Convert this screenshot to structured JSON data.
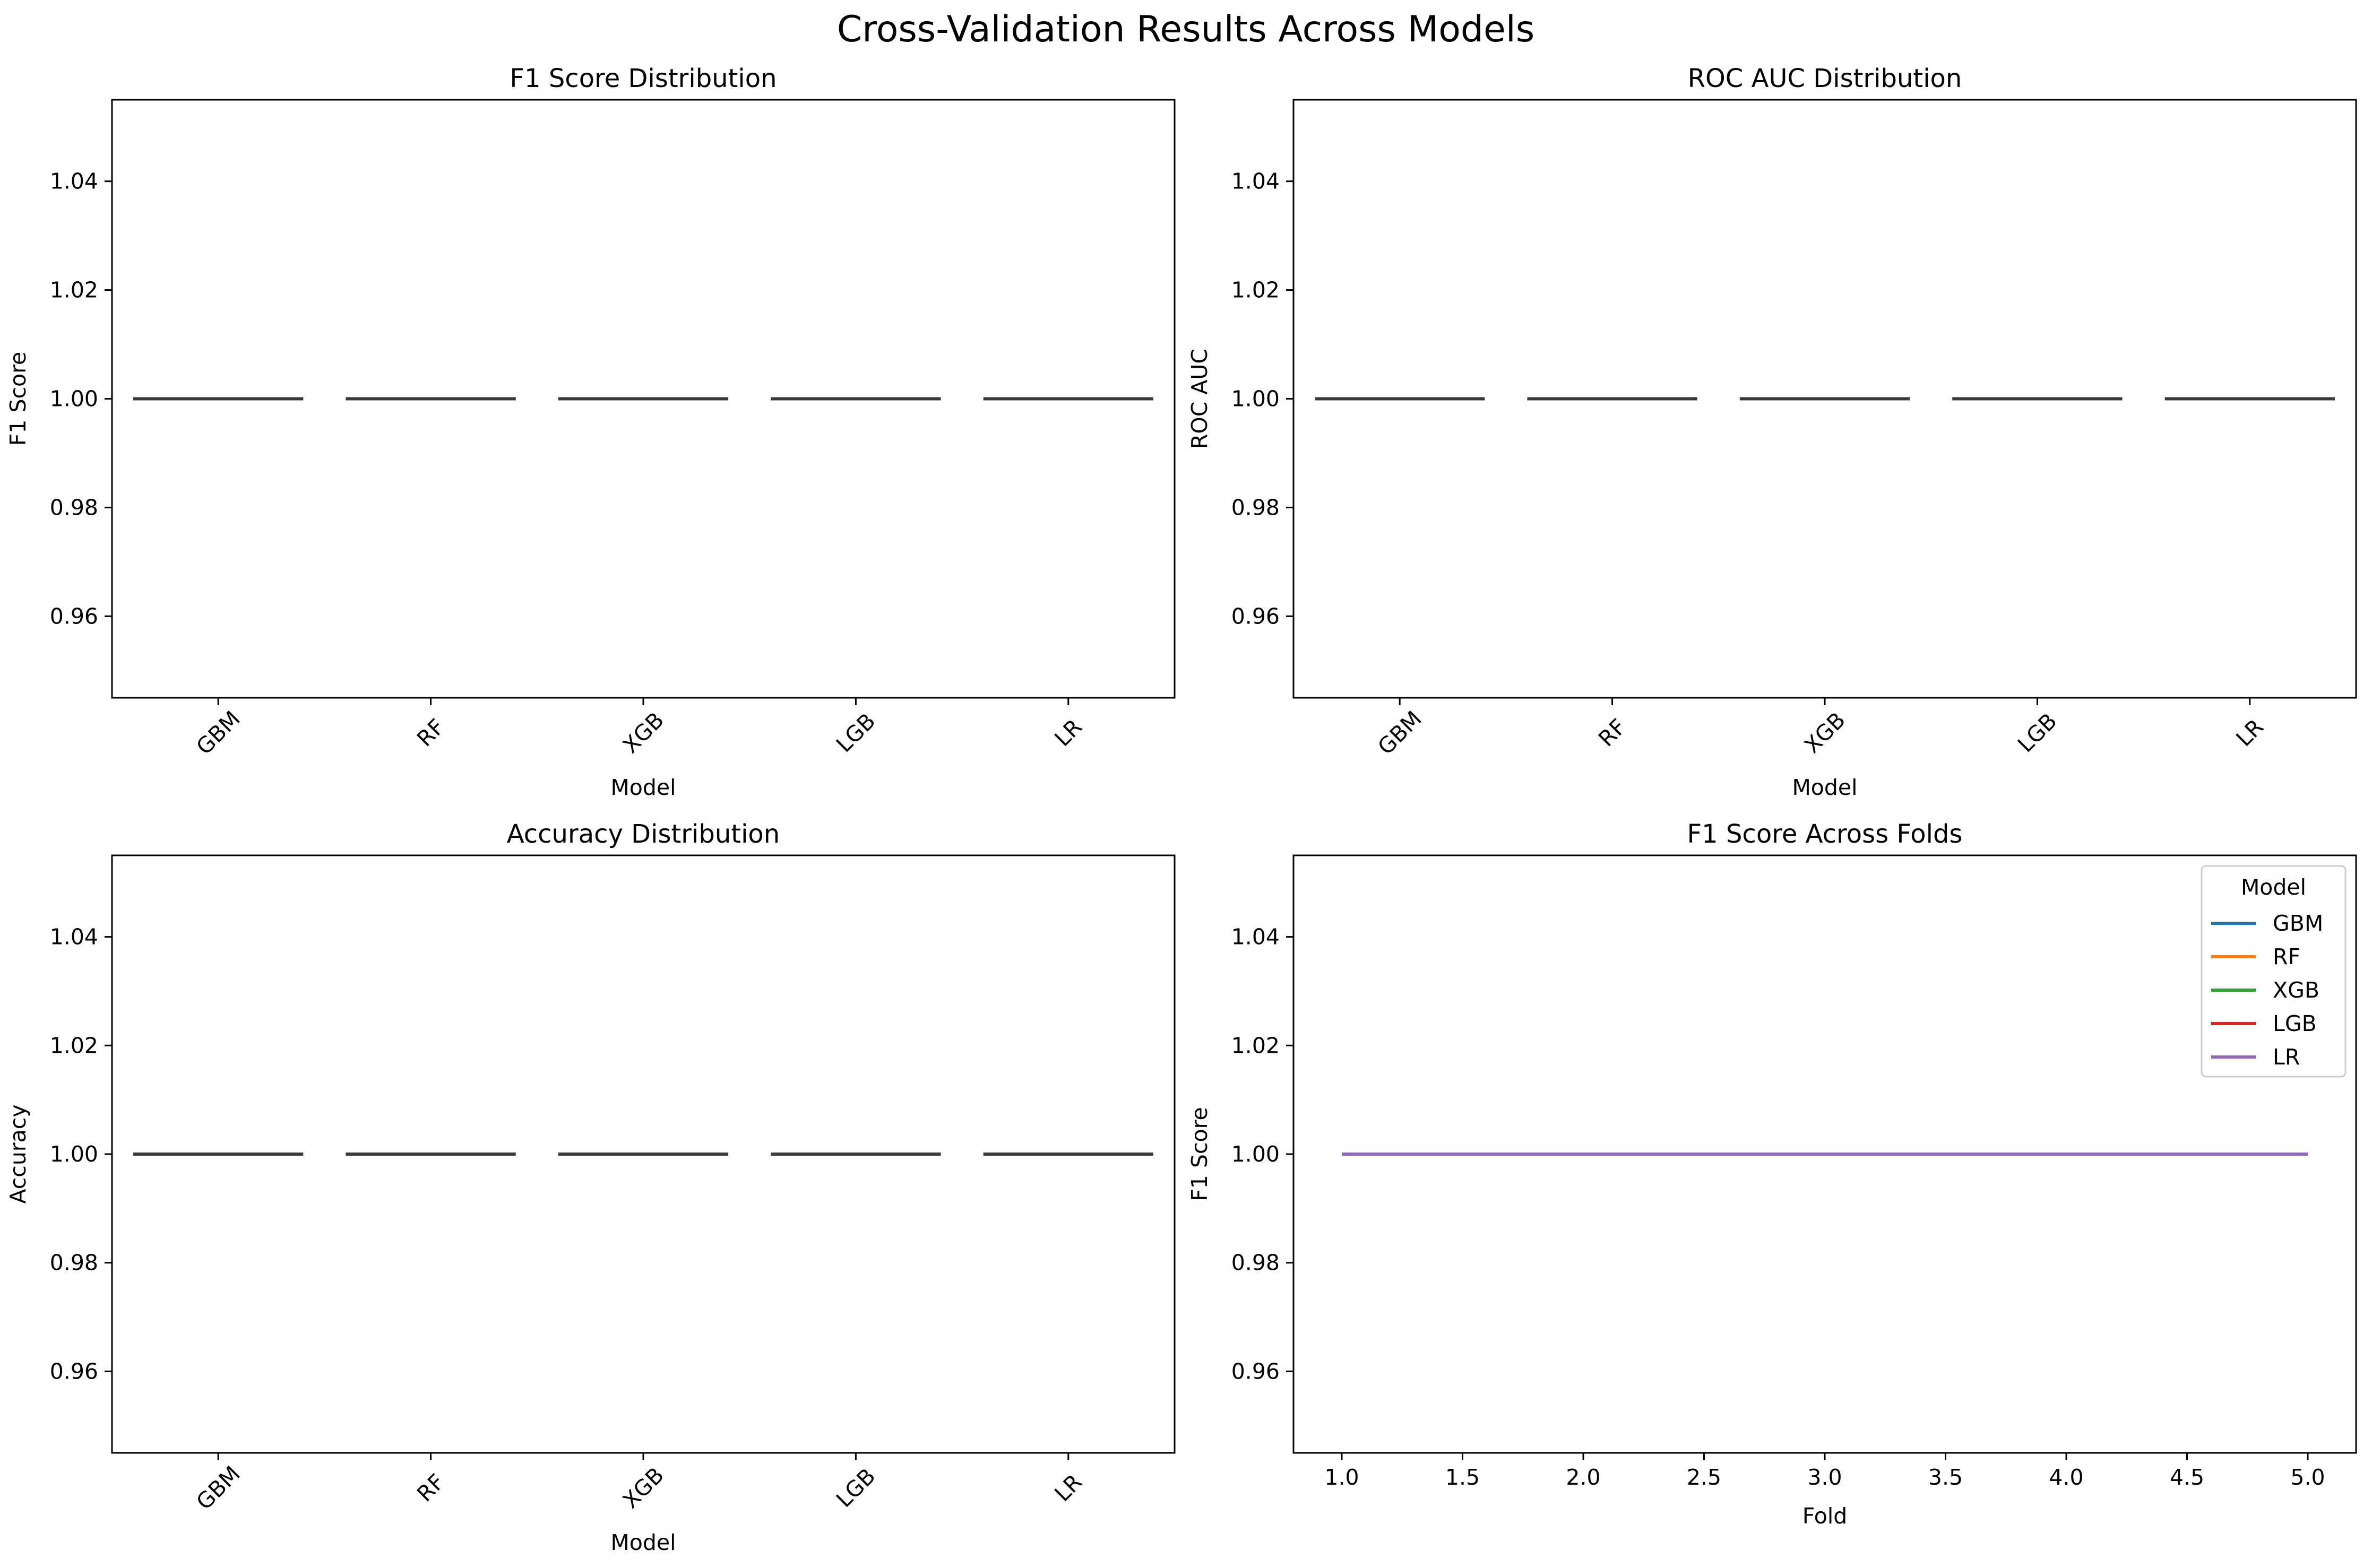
{
  "figure_title": "Cross-Validation Results Across Models",
  "colors": {
    "GBM": "#1f77b4",
    "RF": "#ff7f0e",
    "XGB": "#2ca02c",
    "LGB": "#d62728",
    "LR": "#9467bd",
    "box": "#3a3a3a"
  },
  "chart_data": [
    {
      "type": "box",
      "title": "F1 Score Distribution",
      "xlabel": "Model",
      "ylabel": "F1 Score",
      "categories": [
        "GBM",
        "RF",
        "XGB",
        "LGB",
        "LR"
      ],
      "values": [
        1.0,
        1.0,
        1.0,
        1.0,
        1.0
      ],
      "ylim": [
        0.945,
        1.055
      ],
      "yticks": [
        "0.96",
        "0.98",
        "1.00",
        "1.02",
        "1.04"
      ],
      "grid": false
    },
    {
      "type": "box",
      "title": "ROC AUC Distribution",
      "xlabel": "Model",
      "ylabel": "ROC AUC",
      "categories": [
        "GBM",
        "RF",
        "XGB",
        "LGB",
        "LR"
      ],
      "values": [
        1.0,
        1.0,
        1.0,
        1.0,
        1.0
      ],
      "ylim": [
        0.945,
        1.055
      ],
      "yticks": [
        "0.96",
        "0.98",
        "1.00",
        "1.02",
        "1.04"
      ],
      "grid": false
    },
    {
      "type": "box",
      "title": "Accuracy Distribution",
      "xlabel": "Model",
      "ylabel": "Accuracy",
      "categories": [
        "GBM",
        "RF",
        "XGB",
        "LGB",
        "LR"
      ],
      "values": [
        1.0,
        1.0,
        1.0,
        1.0,
        1.0
      ],
      "ylim": [
        0.945,
        1.055
      ],
      "yticks": [
        "0.96",
        "0.98",
        "1.00",
        "1.02",
        "1.04"
      ],
      "grid": false
    },
    {
      "type": "line",
      "title": "F1 Score Across Folds",
      "xlabel": "Fold",
      "ylabel": "F1 Score",
      "x": [
        1,
        2,
        3,
        4,
        5
      ],
      "xlim": [
        0.8,
        5.2
      ],
      "xticks": [
        "1.0",
        "1.5",
        "2.0",
        "2.5",
        "3.0",
        "3.5",
        "4.0",
        "4.5",
        "5.0"
      ],
      "ylim": [
        0.945,
        1.055
      ],
      "yticks": [
        "0.96",
        "0.98",
        "1.00",
        "1.02",
        "1.04"
      ],
      "legend_title": "Model",
      "legend_position": "top-right",
      "series": [
        {
          "name": "GBM",
          "values": [
            1.0,
            1.0,
            1.0,
            1.0,
            1.0
          ]
        },
        {
          "name": "RF",
          "values": [
            1.0,
            1.0,
            1.0,
            1.0,
            1.0
          ]
        },
        {
          "name": "XGB",
          "values": [
            1.0,
            1.0,
            1.0,
            1.0,
            1.0
          ]
        },
        {
          "name": "LGB",
          "values": [
            1.0,
            1.0,
            1.0,
            1.0,
            1.0
          ]
        },
        {
          "name": "LR",
          "values": [
            1.0,
            1.0,
            1.0,
            1.0,
            1.0
          ]
        }
      ],
      "grid": false
    }
  ]
}
